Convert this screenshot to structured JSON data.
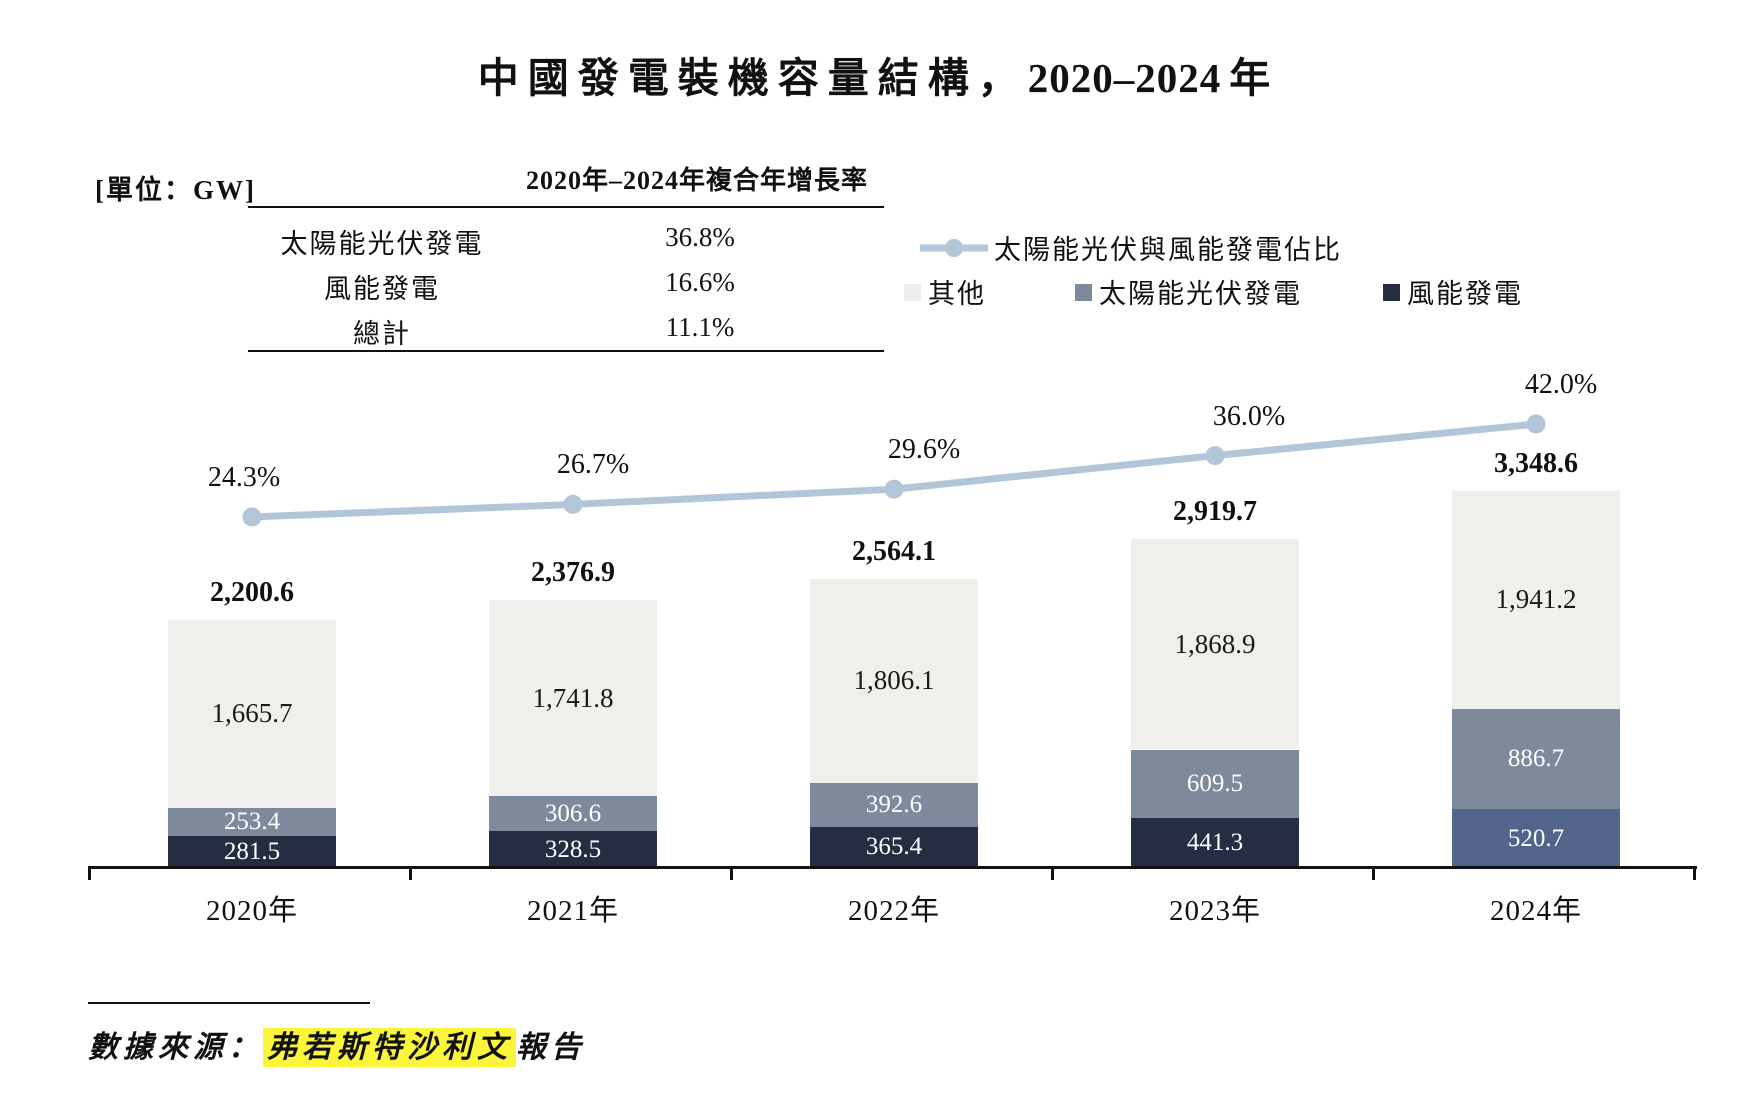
{
  "header": {
    "title_main": "中國發電裝機容量結構，",
    "title_years": "2020–2024",
    "title_suffix": "年"
  },
  "unit_label": "[單位：GW]",
  "cagr_table": {
    "header": "2020年–2024年複合年增長率",
    "rows": [
      {
        "label": "太陽能光伏發電",
        "value": "36.8%"
      },
      {
        "label": "風能發電",
        "value": "16.6%"
      },
      {
        "label": "總計",
        "value": "11.1%"
      }
    ]
  },
  "legend": {
    "line_label": "太陽能光伏與風能發電佔比",
    "line_color": "#B3C5D8",
    "items": [
      {
        "label": "其他",
        "color": "#EFEEEA"
      },
      {
        "label": "太陽能光伏發電",
        "color": "#7D8A9C"
      },
      {
        "label": "風能發電",
        "color": "#242D42"
      }
    ]
  },
  "chart_data": {
    "type": "stacked_bar_with_line",
    "unit": "GW",
    "categories": [
      "2020年",
      "2021年",
      "2022年",
      "2023年",
      "2024年"
    ],
    "stack_order": "bottom-to-top",
    "series": [
      {
        "key": "wind",
        "name": "風能發電",
        "values": [
          281.5,
          328.5,
          365.4,
          441.3,
          520.7
        ],
        "labels": [
          "281.5",
          "328.5",
          "365.4",
          "441.3",
          "520.7"
        ],
        "colors": [
          "#242D42",
          "#242D42",
          "#242D42",
          "#242D42",
          "#50648C"
        ],
        "label_color": "#ffffff",
        "label_size": 25
      },
      {
        "key": "solar",
        "name": "太陽能光伏發電",
        "values": [
          253.4,
          306.6,
          392.6,
          609.5,
          886.7
        ],
        "labels": [
          "253.4",
          "306.6",
          "392.6",
          "609.5",
          "886.7"
        ],
        "colors": [
          "#7D8A9C",
          "#7D8A9C",
          "#7D8A9C",
          "#7D8A9C",
          "#7D8A9C"
        ],
        "label_color": "#ffffff",
        "label_size": 25
      },
      {
        "key": "other",
        "name": "其他",
        "values": [
          1665.7,
          1741.8,
          1806.1,
          1868.9,
          1941.2
        ],
        "labels": [
          "1,665.7",
          "1,741.8",
          "1,806.1",
          "1,868.9",
          "1,941.2"
        ],
        "colors": [
          "#F0EFEC",
          "#F0EFEC",
          "#F0EFEC",
          "#F0EFEC",
          "#F0EFEC"
        ],
        "label_color": "#1a1a1a",
        "label_size": 27
      }
    ],
    "totals": {
      "values": [
        2200.6,
        2376.9,
        2564.1,
        2919.7,
        3348.6
      ],
      "labels": [
        "2,200.6",
        "2,376.9",
        "2,564.1",
        "2,919.7",
        "3,348.6"
      ]
    },
    "line": {
      "name": "太陽能光伏與風能發電佔比",
      "values_pct": [
        24.3,
        26.7,
        29.6,
        36.0,
        42.0
      ],
      "labels": [
        "24.3%",
        "26.7%",
        "29.6%",
        "36.0%",
        "42.0%"
      ],
      "color": "#B3C5D8"
    },
    "value_axis_visible": false
  },
  "footer": {
    "source_prefix": "數據來源：",
    "source_highlight": "弗若斯特沙利文",
    "source_suffix": "報告",
    "highlight_color": "#FBF53C"
  }
}
